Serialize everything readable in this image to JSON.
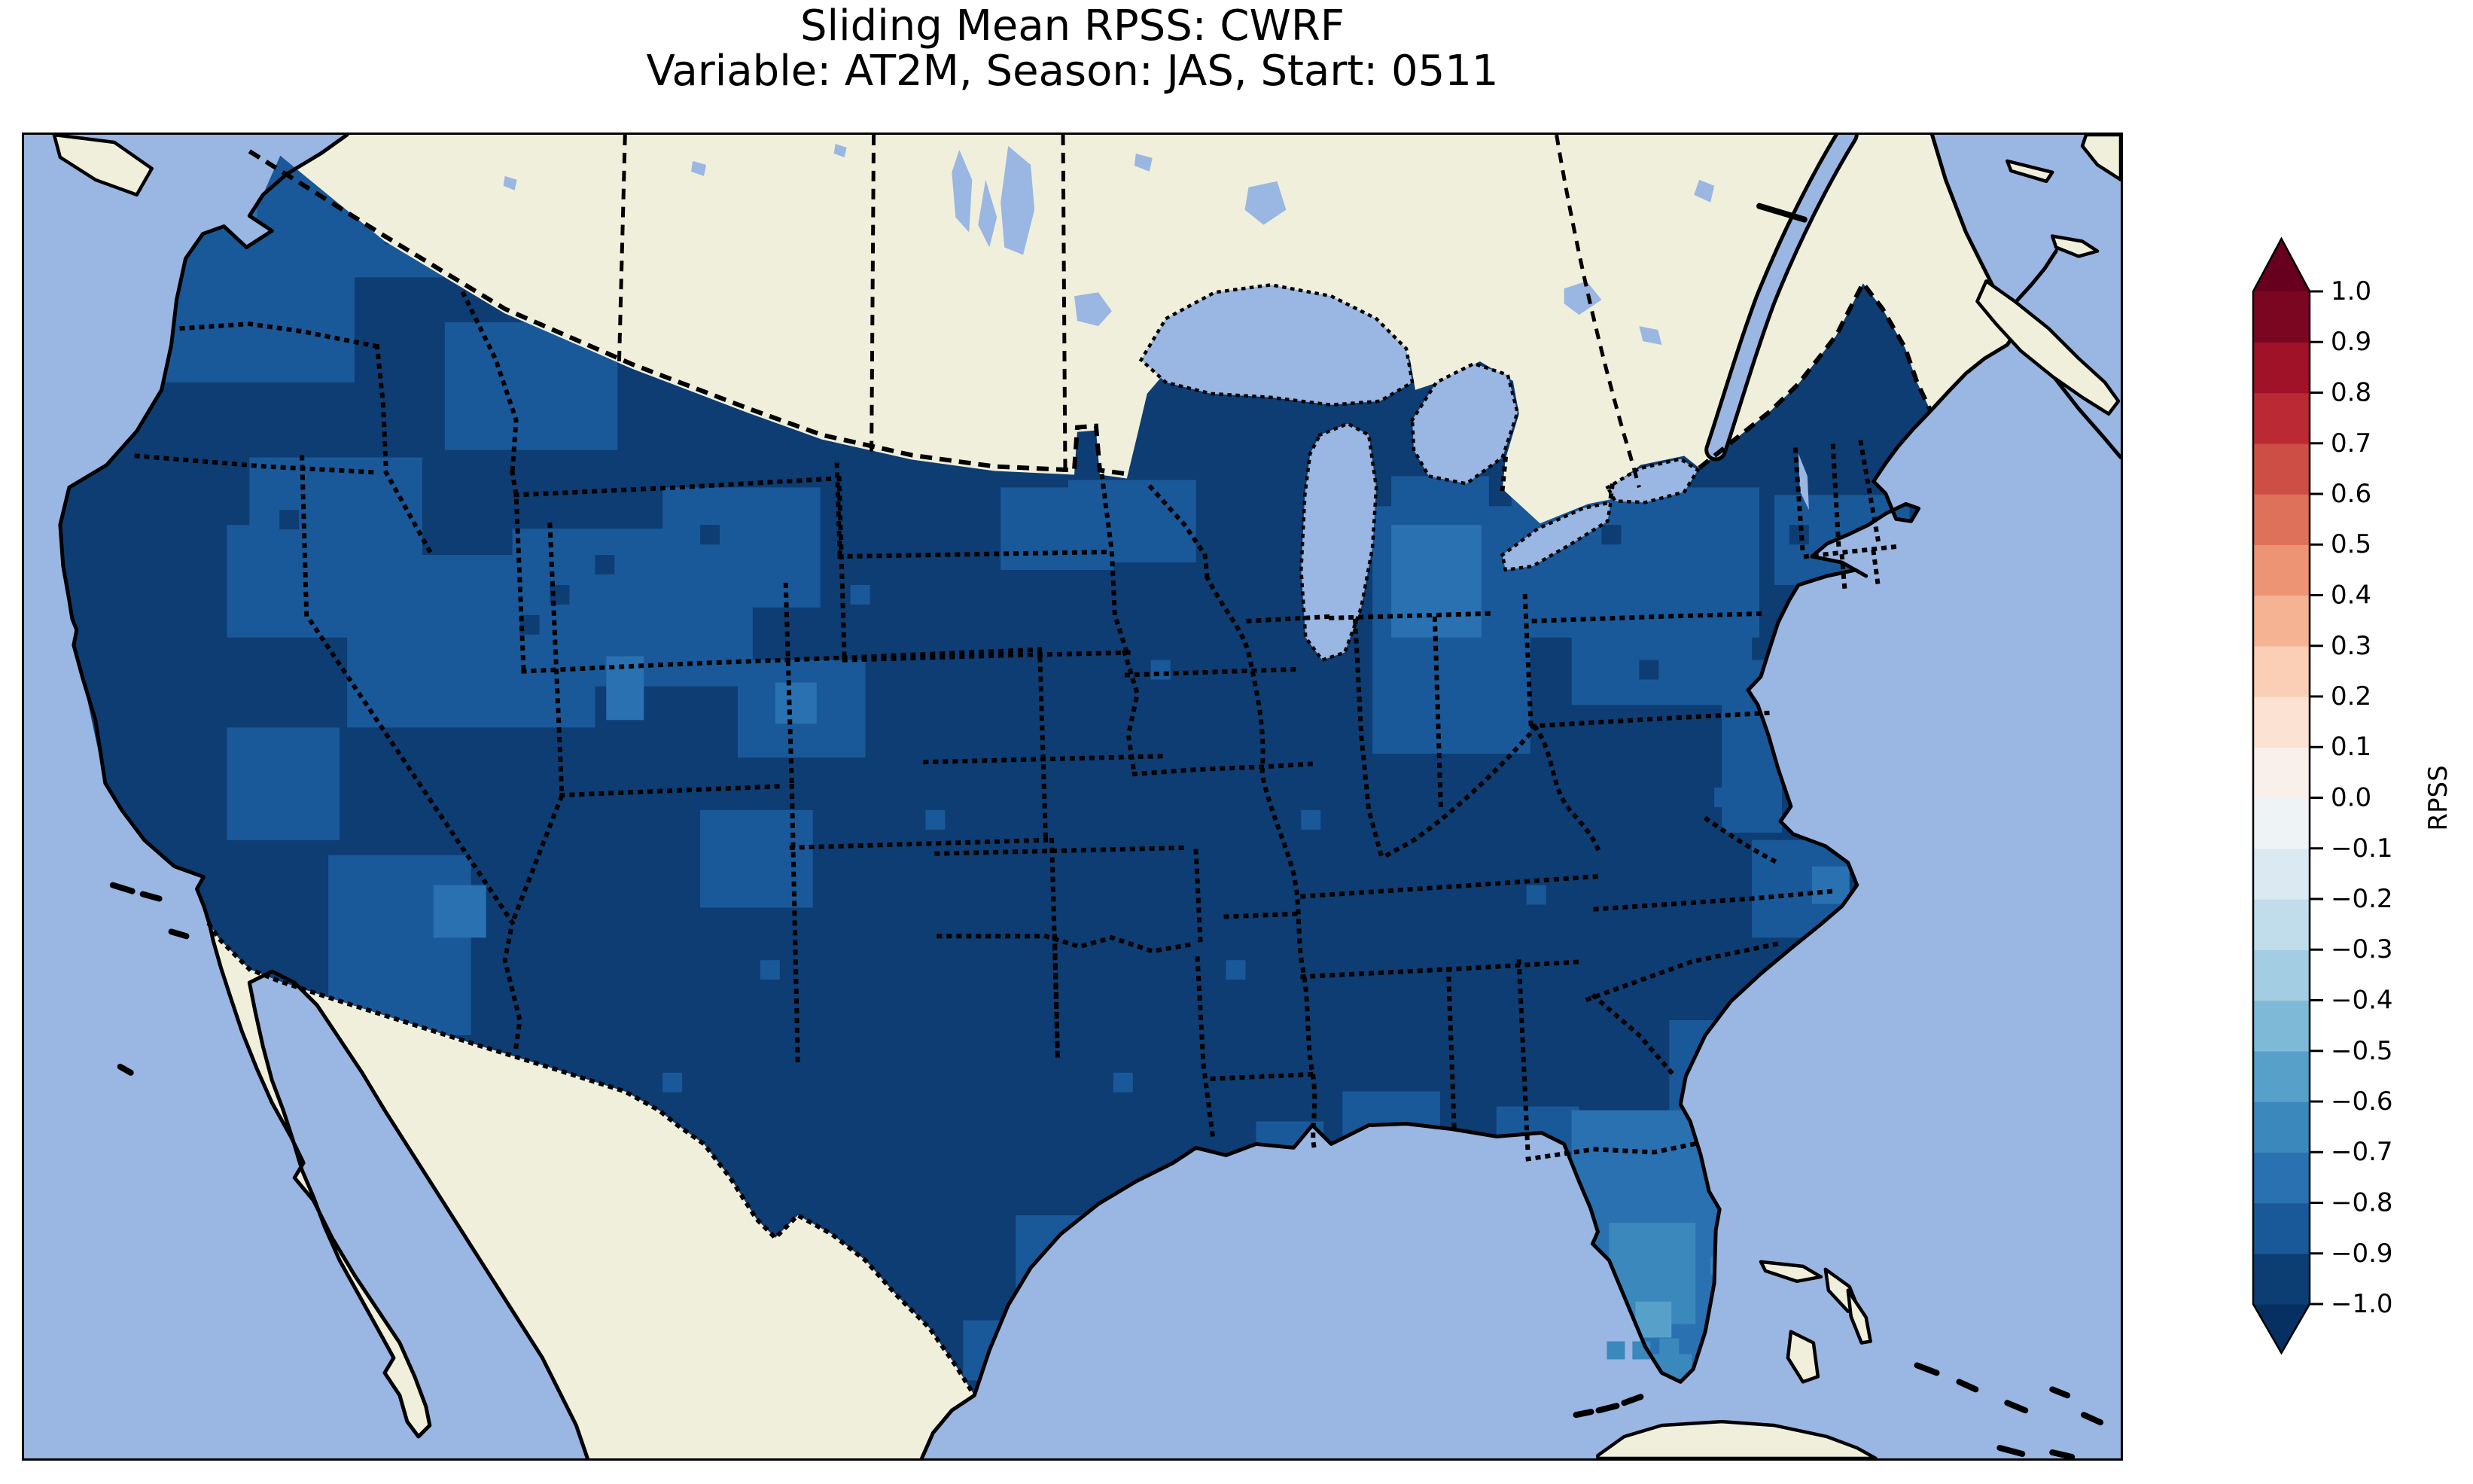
{
  "title": {
    "line1": "Sliding Mean RPSS: CWRF",
    "line2": "Variable: AT2M, Season: JAS, Start: 0511"
  },
  "colorbar": {
    "label": "RPSS",
    "ticks": [
      "1.0",
      "0.9",
      "0.8",
      "0.7",
      "0.6",
      "0.5",
      "0.4",
      "0.3",
      "0.2",
      "0.1",
      "0.0",
      "−0.1",
      "−0.2",
      "−0.3",
      "−0.4",
      "−0.5",
      "−0.6",
      "−0.7",
      "−0.8",
      "−0.9",
      "−1.0"
    ],
    "segment_colors": [
      "#0c3e74",
      "#1a5999",
      "#2a71b2",
      "#3b88bd",
      "#57a0ca",
      "#7eb9d7",
      "#a2cde3",
      "#c1ddec",
      "#dbeaf2",
      "#eef3f5",
      "#f9f0eb",
      "#fce2d3",
      "#fbceb6",
      "#f6b393",
      "#ed9475",
      "#de715a",
      "#cd4e45",
      "#bb2a34",
      "#9f1228",
      "#7a0622"
    ],
    "under_color": "#053061",
    "over_color": "#67001f"
  },
  "palette": {
    "ocean": "#9ab6e2",
    "land": "#f0efdb",
    "b1": "#0d3d72",
    "b2": "#1a5999",
    "b3": "#2a71b2",
    "b4": "#3b88bd",
    "b5": "#57a0ca"
  },
  "chart_data": {
    "type": "heatmap",
    "title": "Sliding Mean RPSS: CWRF",
    "subtitle": "Variable: AT2M, Season: JAS, Start: 0511",
    "colorbar_label": "RPSS",
    "colorbar_ticks": [
      1.0,
      0.9,
      0.8,
      0.7,
      0.6,
      0.5,
      0.4,
      0.3,
      0.2,
      0.1,
      0.0,
      -0.1,
      -0.2,
      -0.3,
      -0.4,
      -0.5,
      -0.6,
      -0.7,
      -0.8,
      -0.9,
      -1.0
    ],
    "value_range": [
      -1.0,
      1.0
    ],
    "colormap": "RdBu_r, 20 discrete 0.1-wide bins with pointed over/under extensions",
    "map_extent": "Contiguous United States (gridded model domain) with surrounding Canada, Mexico, Gulf of Mexico, Caribbean",
    "legend_position": "right vertical colorbar",
    "grid": false,
    "summary": "Gridded RPSS field over CONUS; nearly all grid cells fall in the -1.0 to -0.8 bins (dark navy), with -0.8 to -0.7 and lighter bins over the Florida peninsula, southern Michigan, parts of the interior West, Ohio Valley/Mid-Atlantic and a few isolated coastal/offshore cells",
    "regional_values": [
      {
        "region": "Great Plains and Midwest",
        "approx_rpss": -0.95
      },
      {
        "region": "Texas and Southeast",
        "approx_rpss": -0.95
      },
      {
        "region": "California Central Valley",
        "approx_rpss": -0.95
      },
      {
        "region": "Pacific Northwest coast",
        "approx_rpss": -0.85
      },
      {
        "region": "Interior West (MT/ID/NV/UT/CO patches)",
        "approx_rpss": -0.85
      },
      {
        "region": "Ohio Valley / New York / Pennsylvania",
        "approx_rpss": -0.85
      },
      {
        "region": "Southern Michigan",
        "approx_rpss": -0.75
      },
      {
        "region": "Florida peninsula",
        "approx_rpss": -0.7
      },
      {
        "region": "South Florida cells",
        "approx_rpss": -0.5
      },
      {
        "region": "Maine and northern New England",
        "approx_rpss": -0.95
      }
    ]
  }
}
